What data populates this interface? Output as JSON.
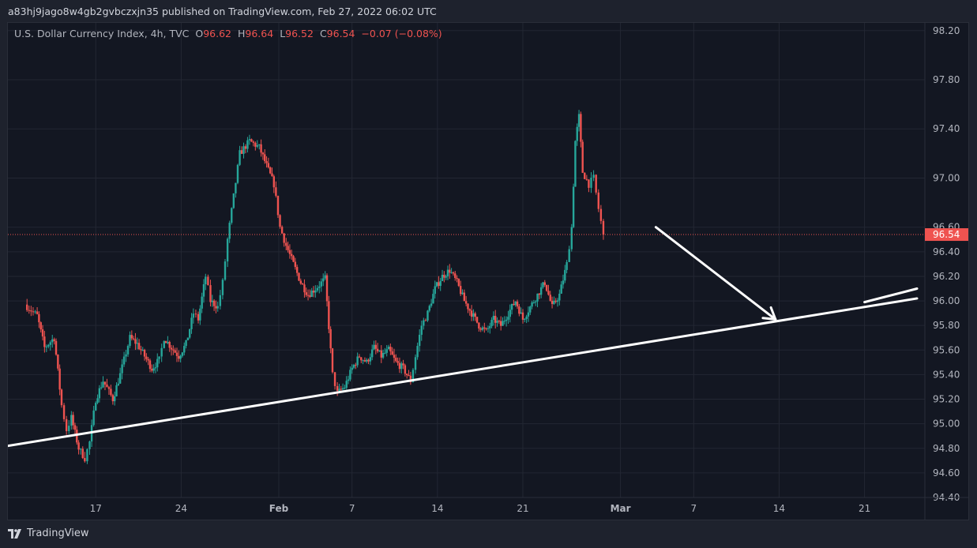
{
  "header": {
    "published_text": "a83hj9jago8w4gb2gvbczxjn35 published on TradingView.com, Feb 27, 2022 06:02 UTC"
  },
  "legend": {
    "symbol": "U.S. Dollar Currency Index, 4h, TVC",
    "o_label": "O",
    "o_value": "96.62",
    "h_label": "H",
    "h_value": "96.64",
    "l_label": "L",
    "l_value": "96.52",
    "c_label": "C",
    "c_value": "96.54",
    "change": "−0.07 (−0.08%)"
  },
  "footer": {
    "brand": "TradingView"
  },
  "colors": {
    "up": "#26a69a",
    "down": "#ef5350",
    "grid": "#232733",
    "axis_text": "#b2b5be",
    "price_line": "#ef5350",
    "drawing": "#ffffff"
  },
  "chart_data": {
    "type": "candlestick",
    "symbol": "U.S. Dollar Currency Index",
    "interval": "4h",
    "ylim": [
      94.4,
      98.25
    ],
    "y_ticks": [
      "98.20",
      "97.80",
      "97.40",
      "97.00",
      "96.60",
      "96.40",
      "96.20",
      "96.00",
      "95.80",
      "95.60",
      "95.40",
      "95.20",
      "95.00",
      "94.80",
      "94.60",
      "94.40"
    ],
    "x_ticks": [
      {
        "label": "17",
        "day": 17,
        "bold": false
      },
      {
        "label": "24",
        "day": 24,
        "bold": false
      },
      {
        "label": "Feb",
        "day": 32,
        "bold": true
      },
      {
        "label": "7",
        "day": 38,
        "bold": false
      },
      {
        "label": "14",
        "day": 45,
        "bold": false
      },
      {
        "label": "21",
        "day": 52,
        "bold": false
      },
      {
        "label": "Mar",
        "day": 60,
        "bold": true
      },
      {
        "label": "7",
        "day": 66,
        "bold": false
      },
      {
        "label": "14",
        "day": 73,
        "bold": false
      },
      {
        "label": "21",
        "day": 80,
        "bold": false
      }
    ],
    "last_price": "96.54",
    "path_anchors": [
      [
        11.2,
        95.97
      ],
      [
        12.2,
        95.88
      ],
      [
        12.8,
        95.62
      ],
      [
        13.6,
        95.7
      ],
      [
        14.2,
        95.15
      ],
      [
        14.6,
        94.95
      ],
      [
        15.0,
        95.05
      ],
      [
        15.6,
        94.8
      ],
      [
        16.1,
        94.72
      ],
      [
        16.5,
        94.85
      ],
      [
        17.0,
        95.2
      ],
      [
        17.6,
        95.35
      ],
      [
        18.4,
        95.2
      ],
      [
        19.0,
        95.4
      ],
      [
        19.8,
        95.7
      ],
      [
        20.4,
        95.65
      ],
      [
        21.0,
        95.55
      ],
      [
        21.6,
        95.45
      ],
      [
        22.2,
        95.52
      ],
      [
        22.6,
        95.7
      ],
      [
        23.2,
        95.62
      ],
      [
        23.8,
        95.55
      ],
      [
        24.4,
        95.65
      ],
      [
        25.0,
        95.9
      ],
      [
        25.4,
        95.85
      ],
      [
        26.0,
        96.2
      ],
      [
        26.4,
        96.0
      ],
      [
        27.0,
        95.95
      ],
      [
        27.4,
        96.15
      ],
      [
        27.8,
        96.5
      ],
      [
        28.3,
        96.85
      ],
      [
        28.8,
        97.2
      ],
      [
        29.6,
        97.3
      ],
      [
        30.4,
        97.25
      ],
      [
        31.0,
        97.1
      ],
      [
        31.6,
        96.95
      ],
      [
        32.1,
        96.6
      ],
      [
        32.6,
        96.45
      ],
      [
        33.2,
        96.3
      ],
      [
        33.8,
        96.15
      ],
      [
        34.4,
        96.05
      ],
      [
        35.0,
        96.1
      ],
      [
        35.8,
        96.18
      ],
      [
        36.4,
        95.4
      ],
      [
        36.8,
        95.25
      ],
      [
        37.4,
        95.3
      ],
      [
        38.0,
        95.45
      ],
      [
        38.6,
        95.55
      ],
      [
        39.2,
        95.5
      ],
      [
        39.8,
        95.62
      ],
      [
        40.4,
        95.55
      ],
      [
        41.0,
        95.6
      ],
      [
        41.6,
        95.5
      ],
      [
        42.2,
        95.45
      ],
      [
        42.8,
        95.35
      ],
      [
        43.2,
        95.55
      ],
      [
        43.7,
        95.8
      ],
      [
        44.2,
        95.9
      ],
      [
        44.8,
        96.1
      ],
      [
        45.4,
        96.2
      ],
      [
        46.0,
        96.25
      ],
      [
        46.6,
        96.15
      ],
      [
        47.2,
        96.0
      ],
      [
        47.8,
        95.9
      ],
      [
        48.4,
        95.8
      ],
      [
        49.0,
        95.75
      ],
      [
        49.6,
        95.85
      ],
      [
        50.2,
        95.8
      ],
      [
        50.8,
        95.9
      ],
      [
        51.4,
        96.0
      ],
      [
        52.0,
        95.85
      ],
      [
        52.6,
        95.95
      ],
      [
        53.2,
        96.05
      ],
      [
        53.8,
        96.15
      ],
      [
        54.4,
        95.95
      ],
      [
        55.0,
        96.05
      ],
      [
        55.6,
        96.3
      ],
      [
        56.0,
        96.6
      ],
      [
        56.3,
        97.3
      ],
      [
        56.6,
        97.5
      ],
      [
        56.9,
        97.05
      ],
      [
        57.4,
        96.95
      ],
      [
        57.8,
        97.0
      ],
      [
        58.2,
        96.75
      ],
      [
        58.6,
        96.54
      ]
    ],
    "annotations": [
      {
        "type": "trendline",
        "from": [
          9.8,
          94.82
        ],
        "to": [
          84.3,
          96.02
        ],
        "note": "ascending support line"
      },
      {
        "type": "arrow",
        "from": [
          62.9,
          96.6
        ],
        "to": [
          72.7,
          95.85
        ],
        "note": "projected path to trendline"
      },
      {
        "type": "line",
        "from": [
          80.0,
          95.99
        ],
        "to": [
          84.3,
          96.1
        ],
        "note": "projected continuation"
      }
    ]
  }
}
